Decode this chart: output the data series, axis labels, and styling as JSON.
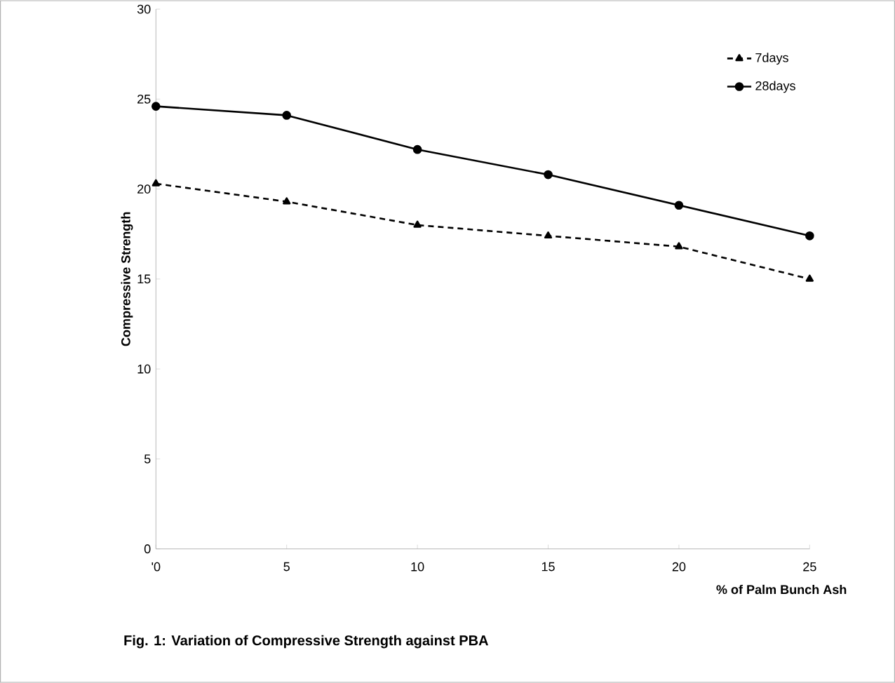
{
  "chart_data": {
    "type": "line",
    "xlabel": "% of Palm Bunch Ash",
    "ylabel": "Compressive Strength",
    "annotations": [
      "Fig. 1: Variation of Compressive Strength against PBA"
    ],
    "categories": [
      "'0",
      "5",
      "10",
      "15",
      "20",
      "25"
    ],
    "ylim": [
      0,
      30
    ],
    "yticks": [
      0,
      5,
      10,
      15,
      20,
      25,
      30
    ],
    "grid": false,
    "legend": "top right",
    "series": [
      {
        "name": "7days",
        "color": "#000000",
        "marker": "triangle",
        "line_style": "dashed",
        "values": [
          20.3,
          19.3,
          18.0,
          17.4,
          16.8,
          15.0
        ]
      },
      {
        "name": "28days",
        "color": "#000000",
        "marker": "circle",
        "line_style": "solid",
        "values": [
          24.6,
          24.1,
          22.2,
          20.8,
          19.1,
          17.4
        ]
      }
    ]
  }
}
